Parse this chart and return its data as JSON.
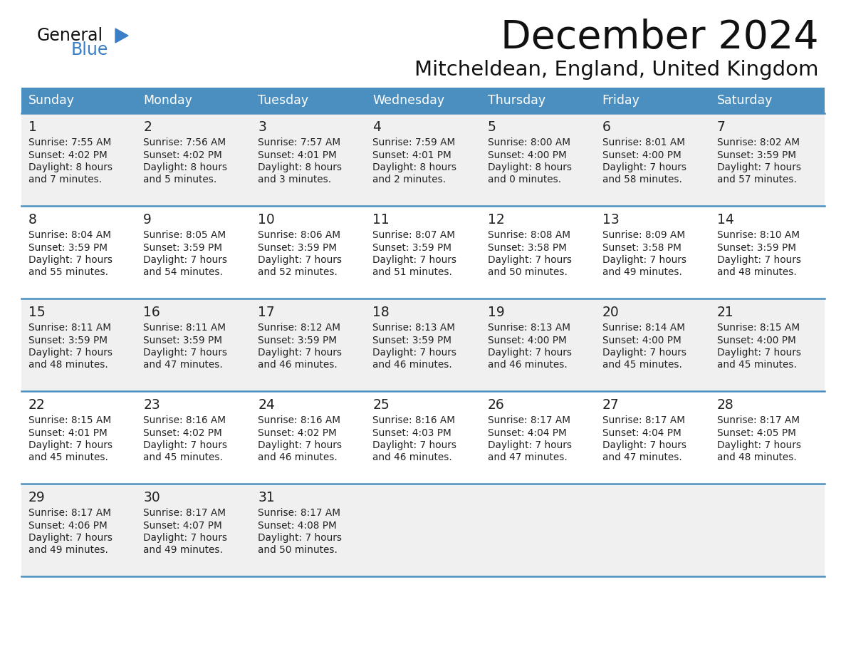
{
  "title": "December 2024",
  "subtitle": "Mitcheldean, England, United Kingdom",
  "days_of_week": [
    "Sunday",
    "Monday",
    "Tuesday",
    "Wednesday",
    "Thursday",
    "Friday",
    "Saturday"
  ],
  "header_bg": "#4A8FC0",
  "header_text": "#FFFFFF",
  "row_bg_odd": "#F0F0F0",
  "row_bg_even": "#FFFFFF",
  "date_color": "#222222",
  "text_color": "#222222",
  "border_color": "#4A8FC0",
  "bg_color": "#FFFFFF",
  "logo_general_color": "#111111",
  "logo_blue_color": "#3A7EC6",
  "calendar_data": [
    [
      {
        "day": "1",
        "sunrise": "7:55 AM",
        "sunset": "4:02 PM",
        "daylight_h": "8 hours",
        "daylight_m": "and 7 minutes."
      },
      {
        "day": "2",
        "sunrise": "7:56 AM",
        "sunset": "4:02 PM",
        "daylight_h": "8 hours",
        "daylight_m": "and 5 minutes."
      },
      {
        "day": "3",
        "sunrise": "7:57 AM",
        "sunset": "4:01 PM",
        "daylight_h": "8 hours",
        "daylight_m": "and 3 minutes."
      },
      {
        "day": "4",
        "sunrise": "7:59 AM",
        "sunset": "4:01 PM",
        "daylight_h": "8 hours",
        "daylight_m": "and 2 minutes."
      },
      {
        "day": "5",
        "sunrise": "8:00 AM",
        "sunset": "4:00 PM",
        "daylight_h": "8 hours",
        "daylight_m": "and 0 minutes."
      },
      {
        "day": "6",
        "sunrise": "8:01 AM",
        "sunset": "4:00 PM",
        "daylight_h": "7 hours",
        "daylight_m": "and 58 minutes."
      },
      {
        "day": "7",
        "sunrise": "8:02 AM",
        "sunset": "3:59 PM",
        "daylight_h": "7 hours",
        "daylight_m": "and 57 minutes."
      }
    ],
    [
      {
        "day": "8",
        "sunrise": "8:04 AM",
        "sunset": "3:59 PM",
        "daylight_h": "7 hours",
        "daylight_m": "and 55 minutes."
      },
      {
        "day": "9",
        "sunrise": "8:05 AM",
        "sunset": "3:59 PM",
        "daylight_h": "7 hours",
        "daylight_m": "and 54 minutes."
      },
      {
        "day": "10",
        "sunrise": "8:06 AM",
        "sunset": "3:59 PM",
        "daylight_h": "7 hours",
        "daylight_m": "and 52 minutes."
      },
      {
        "day": "11",
        "sunrise": "8:07 AM",
        "sunset": "3:59 PM",
        "daylight_h": "7 hours",
        "daylight_m": "and 51 minutes."
      },
      {
        "day": "12",
        "sunrise": "8:08 AM",
        "sunset": "3:58 PM",
        "daylight_h": "7 hours",
        "daylight_m": "and 50 minutes."
      },
      {
        "day": "13",
        "sunrise": "8:09 AM",
        "sunset": "3:58 PM",
        "daylight_h": "7 hours",
        "daylight_m": "and 49 minutes."
      },
      {
        "day": "14",
        "sunrise": "8:10 AM",
        "sunset": "3:59 PM",
        "daylight_h": "7 hours",
        "daylight_m": "and 48 minutes."
      }
    ],
    [
      {
        "day": "15",
        "sunrise": "8:11 AM",
        "sunset": "3:59 PM",
        "daylight_h": "7 hours",
        "daylight_m": "and 48 minutes."
      },
      {
        "day": "16",
        "sunrise": "8:11 AM",
        "sunset": "3:59 PM",
        "daylight_h": "7 hours",
        "daylight_m": "and 47 minutes."
      },
      {
        "day": "17",
        "sunrise": "8:12 AM",
        "sunset": "3:59 PM",
        "daylight_h": "7 hours",
        "daylight_m": "and 46 minutes."
      },
      {
        "day": "18",
        "sunrise": "8:13 AM",
        "sunset": "3:59 PM",
        "daylight_h": "7 hours",
        "daylight_m": "and 46 minutes."
      },
      {
        "day": "19",
        "sunrise": "8:13 AM",
        "sunset": "4:00 PM",
        "daylight_h": "7 hours",
        "daylight_m": "and 46 minutes."
      },
      {
        "day": "20",
        "sunrise": "8:14 AM",
        "sunset": "4:00 PM",
        "daylight_h": "7 hours",
        "daylight_m": "and 45 minutes."
      },
      {
        "day": "21",
        "sunrise": "8:15 AM",
        "sunset": "4:00 PM",
        "daylight_h": "7 hours",
        "daylight_m": "and 45 minutes."
      }
    ],
    [
      {
        "day": "22",
        "sunrise": "8:15 AM",
        "sunset": "4:01 PM",
        "daylight_h": "7 hours",
        "daylight_m": "and 45 minutes."
      },
      {
        "day": "23",
        "sunrise": "8:16 AM",
        "sunset": "4:02 PM",
        "daylight_h": "7 hours",
        "daylight_m": "and 45 minutes."
      },
      {
        "day": "24",
        "sunrise": "8:16 AM",
        "sunset": "4:02 PM",
        "daylight_h": "7 hours",
        "daylight_m": "and 46 minutes."
      },
      {
        "day": "25",
        "sunrise": "8:16 AM",
        "sunset": "4:03 PM",
        "daylight_h": "7 hours",
        "daylight_m": "and 46 minutes."
      },
      {
        "day": "26",
        "sunrise": "8:17 AM",
        "sunset": "4:04 PM",
        "daylight_h": "7 hours",
        "daylight_m": "and 47 minutes."
      },
      {
        "day": "27",
        "sunrise": "8:17 AM",
        "sunset": "4:04 PM",
        "daylight_h": "7 hours",
        "daylight_m": "and 47 minutes."
      },
      {
        "day": "28",
        "sunrise": "8:17 AM",
        "sunset": "4:05 PM",
        "daylight_h": "7 hours",
        "daylight_m": "and 48 minutes."
      }
    ],
    [
      {
        "day": "29",
        "sunrise": "8:17 AM",
        "sunset": "4:06 PM",
        "daylight_h": "7 hours",
        "daylight_m": "and 49 minutes."
      },
      {
        "day": "30",
        "sunrise": "8:17 AM",
        "sunset": "4:07 PM",
        "daylight_h": "7 hours",
        "daylight_m": "and 49 minutes."
      },
      {
        "day": "31",
        "sunrise": "8:17 AM",
        "sunset": "4:08 PM",
        "daylight_h": "7 hours",
        "daylight_m": "and 50 minutes."
      },
      null,
      null,
      null,
      null
    ]
  ]
}
